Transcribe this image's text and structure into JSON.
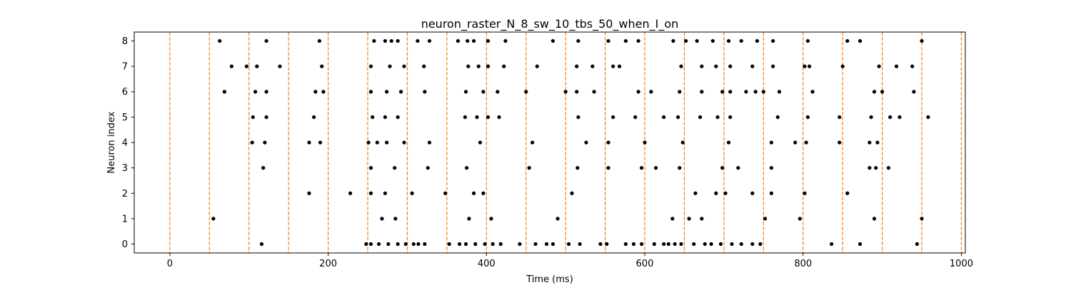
{
  "chart_data": {
    "type": "scatter",
    "title": "neuron_raster_N_8_sw_10_tbs_50_when_I_on",
    "xlabel": "Time (ms)",
    "ylabel": "Neuron index",
    "xlim": [
      -45,
      1005
    ],
    "ylim": [
      -0.35,
      8.35
    ],
    "xticks": [
      0,
      200,
      400,
      600,
      800,
      1000
    ],
    "yticks": [
      0,
      1,
      2,
      3,
      4,
      5,
      6,
      7,
      8
    ],
    "grid": false,
    "marker_color": "#000000",
    "vline_color": "#ff7f0e",
    "vlines": [
      0,
      50,
      100,
      150,
      200,
      250,
      300,
      350,
      400,
      450,
      500,
      550,
      600,
      650,
      700,
      750,
      800,
      850,
      900,
      950,
      1000
    ],
    "series": [
      {
        "neuron": 0,
        "times": [
          116,
          248,
          254,
          264,
          276,
          288,
          298,
          308,
          314,
          322,
          353,
          366,
          374,
          386,
          398,
          408,
          418,
          442,
          462,
          476,
          484,
          504,
          518,
          544,
          552,
          576,
          586,
          596,
          612,
          624,
          630,
          638,
          646,
          662,
          676,
          684,
          696,
          710,
          722,
          736,
          746,
          836,
          872,
          944
        ]
      },
      {
        "neuron": 1,
        "times": [
          55,
          268,
          285,
          378,
          406,
          490,
          635,
          656,
          672,
          752,
          796,
          890,
          950
        ]
      },
      {
        "neuron": 2,
        "times": [
          176,
          228,
          254,
          272,
          306,
          348,
          384,
          396,
          508,
          664,
          690,
          702,
          736,
          760,
          802,
          856
        ]
      },
      {
        "neuron": 3,
        "times": [
          118,
          254,
          284,
          326,
          375,
          454,
          515,
          554,
          596,
          614,
          644,
          698,
          718,
          760,
          884,
          892,
          908
        ]
      },
      {
        "neuron": 4,
        "times": [
          104,
          120,
          176,
          190,
          251,
          262,
          274,
          296,
          328,
          392,
          458,
          526,
          554,
          600,
          648,
          706,
          760,
          790,
          804,
          846,
          884,
          894
        ]
      },
      {
        "neuron": 5,
        "times": [
          105,
          122,
          182,
          256,
          272,
          288,
          373,
          388,
          402,
          416,
          516,
          560,
          588,
          624,
          642,
          670,
          692,
          708,
          768,
          806,
          846,
          886,
          910,
          922,
          958
        ]
      },
      {
        "neuron": 6,
        "times": [
          69,
          108,
          122,
          184,
          194,
          254,
          274,
          292,
          322,
          374,
          396,
          414,
          450,
          500,
          514,
          536,
          592,
          608,
          644,
          672,
          698,
          708,
          728,
          740,
          750,
          770,
          812,
          890,
          900,
          940
        ]
      },
      {
        "neuron": 7,
        "times": [
          78,
          97,
          110,
          139,
          192,
          254,
          278,
          296,
          321,
          377,
          390,
          402,
          422,
          464,
          514,
          534,
          560,
          568,
          646,
          672,
          690,
          708,
          736,
          762,
          802,
          808,
          850,
          896,
          918,
          938
        ]
      },
      {
        "neuron": 8,
        "times": [
          63,
          122,
          189,
          258,
          272,
          280,
          288,
          313,
          328,
          364,
          376,
          384,
          402,
          424,
          484,
          516,
          554,
          576,
          592,
          636,
          652,
          666,
          686,
          706,
          722,
          742,
          762,
          806,
          856,
          872,
          950
        ]
      }
    ]
  }
}
